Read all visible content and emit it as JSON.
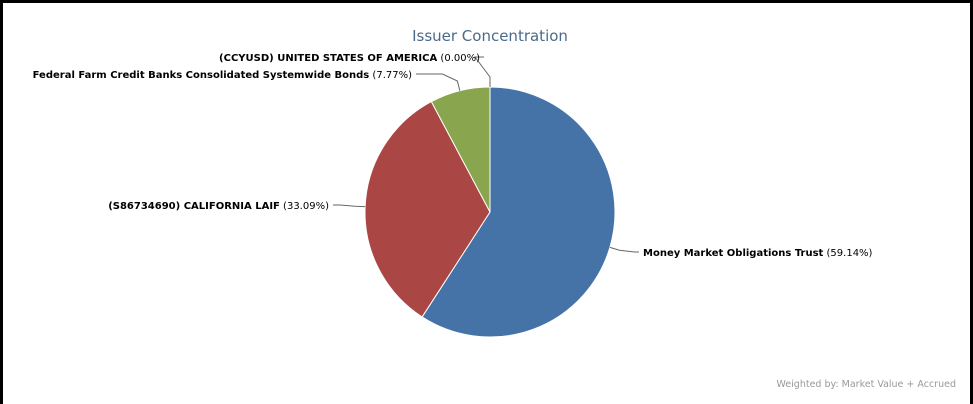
{
  "chart_data": {
    "type": "pie",
    "title": "Issuer Concentration",
    "slices": [
      {
        "name": "Money Market Obligations Trust",
        "value": 59.14,
        "percent_label": "(59.14%)",
        "color": "#4572a7"
      },
      {
        "name": "(S86734690) CALIFORNIA LAIF",
        "value": 33.09,
        "percent_label": "(33.09%)",
        "color": "#aa4643"
      },
      {
        "name": "Federal Farm Credit Banks Consolidated Systemwide Bonds",
        "value": 7.77,
        "percent_label": "(7.77%)",
        "color": "#89a54e"
      },
      {
        "name": "(CCYUSD) UNITED STATES OF AMERICA",
        "value": 0.0,
        "percent_label": "(0.00%)",
        "color": "#80699b"
      }
    ],
    "footnote": "Weighted by: Market Value + Accrued"
  }
}
